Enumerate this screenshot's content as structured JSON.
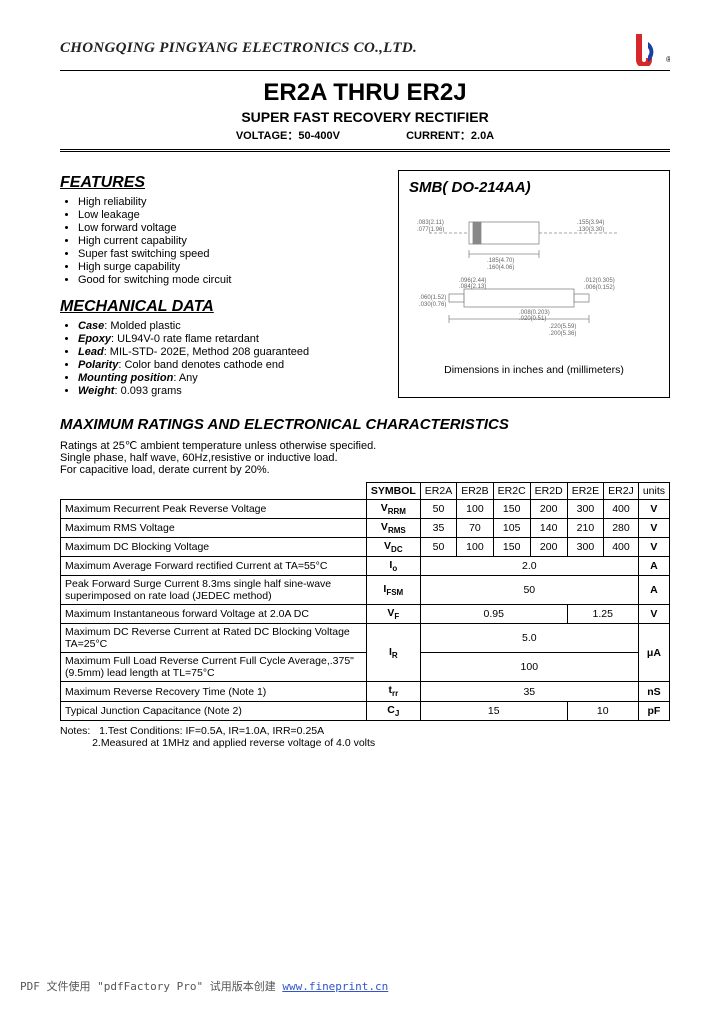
{
  "header": {
    "company": "CHONGQING PINGYANG ELECTRONICS CO.,LTD.",
    "logo_colors": {
      "red": "#d62828",
      "blue": "#1a3fa3"
    }
  },
  "title": {
    "main": "ER2A THRU ER2J",
    "sub": "SUPER FAST RECOVERY RECTIFIER",
    "voltage_label": "VOLTAGE：",
    "voltage_value": "50-400V",
    "current_label": "CURRENT：",
    "current_value": "2.0A"
  },
  "features": {
    "heading": "FEATURES",
    "items": [
      "High reliability",
      "Low leakage",
      "Low forward voltage",
      "High current capability",
      "Super fast switching speed",
      "High surge capability",
      "Good for switching mode circuit"
    ]
  },
  "mechanical": {
    "heading": "MECHANICAL DATA",
    "items": [
      {
        "label": "Case",
        "value": "Molded plastic"
      },
      {
        "label": "Epoxy",
        "value": "UL94V-0 rate flame retardant"
      },
      {
        "label": "Lead",
        "value": "MIL-STD- 202E, Method 208 guaranteed"
      },
      {
        "label": "Polarity",
        "value": "Color band denotes cathode end"
      },
      {
        "label": "Mounting position",
        "value": "Any"
      },
      {
        "label": "Weight",
        "value": "0.093 grams"
      }
    ]
  },
  "package": {
    "title": "SMB( DO-214AA)",
    "dims_note": "Dimensions in inches and (millimeters)",
    "dims": [
      ".083(2.11)",
      ".077(1.96)",
      ".155(3.94)",
      ".130(3.30)",
      ".185(4.70)",
      ".160(4.06)",
      ".012(0.305)",
      ".006(0.152)",
      ".096(2.44)",
      ".084(2.13)",
      ".060(1.52)",
      ".030(0.76)",
      ".008(0.203)",
      ".020(0.51)",
      ".220(5.59)",
      ".200(5.36)"
    ]
  },
  "ratings": {
    "heading": "MAXIMUM RATINGS AND ELECTRONICAL CHARACTERISTICS",
    "preamble": [
      "Ratings at 25℃ ambient temperature unless otherwise specified.",
      "Single phase, half wave, 60Hz,resistive or inductive load.",
      "For capacitive load, derate current by 20%."
    ],
    "columns": [
      "SYMBOL",
      "ER2A",
      "ER2B",
      "ER2C",
      "ER2D",
      "ER2E",
      "ER2J",
      "units"
    ],
    "rows": [
      {
        "param": "Maximum Recurrent Peak Reverse Voltage",
        "sym": "V",
        "sub": "RRM",
        "vals": [
          "50",
          "100",
          "150",
          "200",
          "300",
          "400"
        ],
        "unit": "V"
      },
      {
        "param": "Maximum RMS Voltage",
        "sym": "V",
        "sub": "RMS",
        "vals": [
          "35",
          "70",
          "105",
          "140",
          "210",
          "280"
        ],
        "unit": "V"
      },
      {
        "param": "Maximum DC Blocking Voltage",
        "sym": "V",
        "sub": "DC",
        "vals": [
          "50",
          "100",
          "150",
          "200",
          "300",
          "400"
        ],
        "unit": "V"
      },
      {
        "param": "Maximum Average Forward rectified Current at TA=55°C",
        "sym": "I",
        "sub": "o",
        "span": "2.0",
        "unit": "A"
      },
      {
        "param": "Peak Forward Surge Current 8.3ms single half sine-wave superimposed on rate load (JEDEC method)",
        "sym": "I",
        "sub": "FSM",
        "span": "50",
        "unit": "A"
      },
      {
        "param": "Maximum Instantaneous forward Voltage at 2.0A DC",
        "sym": "V",
        "sub": "F",
        "group4": "0.95",
        "group2": "1.25",
        "unit": "V"
      },
      {
        "param": "Maximum DC Reverse Current at Rated DC Blocking Voltage TA=25°C",
        "sym": "I",
        "sub": "R",
        "span": "5.0",
        "unit_rowspan_start": true,
        "unit": "μA"
      },
      {
        "param": "Maximum Full Load Reverse Current Full Cycle Average,.375\"(9.5mm) lead length at TL=75°C",
        "sym_skip": true,
        "span": "100",
        "unit_rowspan_end": true
      },
      {
        "param": "Maximum Reverse Recovery Time (Note 1)",
        "sym": "t",
        "sub": "rr",
        "span": "35",
        "unit": "nS"
      },
      {
        "param": "Typical Junction Capacitance (Note 2)",
        "sym": "C",
        "sub": "J",
        "group4": "15",
        "group2": "10",
        "unit": "pF"
      }
    ],
    "notes": [
      "1.Test Conditions: IF=0.5A, IR=1.0A, IRR=0.25A",
      "2.Measured at 1MHz and applied reverse voltage of 4.0 volts"
    ],
    "notes_label": "Notes:"
  },
  "footer": {
    "text": "PDF 文件使用 \"pdfFactory Pro\" 试用版本创建 ",
    "link_text": "www.fineprint.cn"
  }
}
